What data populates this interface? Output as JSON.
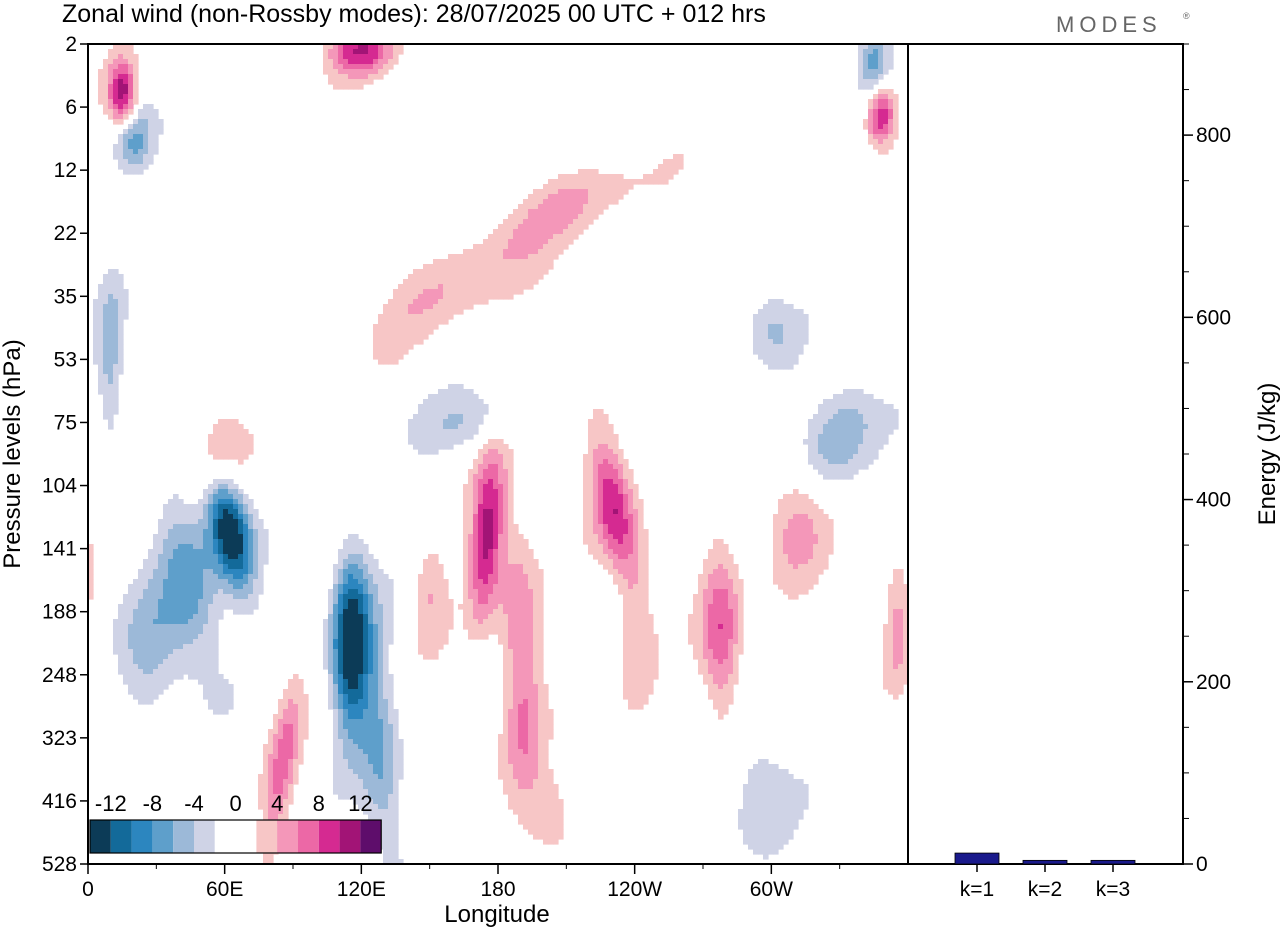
{
  "title": "Zonal wind (non-Rossby modes):  28/07/2025  00 UTC  + 012 hrs",
  "brand": "MODES",
  "brand_mark": "®",
  "colors": {
    "frame": "#000000",
    "bar_fill": "#1a1a8c",
    "levels": [
      {
        "value": "-14",
        "color": "#0c3b57"
      },
      {
        "value": "-12",
        "color": "#136a9a"
      },
      {
        "value": "-10",
        "color": "#2c86bf"
      },
      {
        "value": "-8",
        "color": "#5e9fcb"
      },
      {
        "value": "-6",
        "color": "#9cb9d8"
      },
      {
        "value": "-4",
        "color": "#cfd3e6"
      },
      {
        "value": "0a",
        "color": "#ffffff"
      },
      {
        "value": "0b",
        "color": "#ffffff"
      },
      {
        "value": "4",
        "color": "#f7c6c6"
      },
      {
        "value": "6",
        "color": "#f497b9"
      },
      {
        "value": "8",
        "color": "#ec68a6"
      },
      {
        "value": "10",
        "color": "#d52a91"
      },
      {
        "value": "12",
        "color": "#a21476"
      },
      {
        "value": "14",
        "color": "#5e0d6b"
      }
    ]
  },
  "chart_data": [
    {
      "type": "heatmap",
      "title": "Zonal wind (non-Rossby modes):  28/07/2025  00 UTC  + 012 hrs",
      "xlabel": "Longitude",
      "ylabel": "Pressure levels (hPa)",
      "x_ticks": [
        "0",
        "60E",
        "120E",
        "180",
        "120W",
        "60W"
      ],
      "y_ticks": [
        "2",
        "6",
        "12",
        "22",
        "35",
        "53",
        "75",
        "104",
        "141",
        "188",
        "248",
        "323",
        "416",
        "528"
      ],
      "colorbar_labels": [
        "-12",
        "-8",
        "-4",
        "0",
        "4",
        "8",
        "12"
      ],
      "features": [
        {
          "name": "negative-core-60E",
          "lon": 60,
          "level_index": 7.8,
          "value": -14
        },
        {
          "name": "negative-core-115E",
          "lon": 115,
          "level_index": 9.5,
          "value": -13
        },
        {
          "name": "positive-core-175E",
          "lon": 178,
          "level_index": 7.8,
          "value": 10
        },
        {
          "name": "positive-core-130W",
          "lon": 228,
          "level_index": 7.3,
          "value": 9
        },
        {
          "name": "positive-core-80W",
          "lon": 280,
          "level_index": 9.3,
          "value": 8
        },
        {
          "name": "positive-core-15E-top",
          "lon": 15,
          "level_index": 0.8,
          "value": 11
        },
        {
          "name": "positive-core-right-top",
          "lon": 348,
          "level_index": 1.0,
          "value": 11
        }
      ]
    },
    {
      "type": "bar",
      "categories": [
        "k=1",
        "k=2",
        "k=3"
      ],
      "values": [
        12,
        4,
        4
      ],
      "ylabel": "Energy (J/kg)",
      "ylim": [
        0,
        900
      ],
      "y_ticks": [
        "0",
        "200",
        "400",
        "600",
        "800"
      ]
    }
  ]
}
